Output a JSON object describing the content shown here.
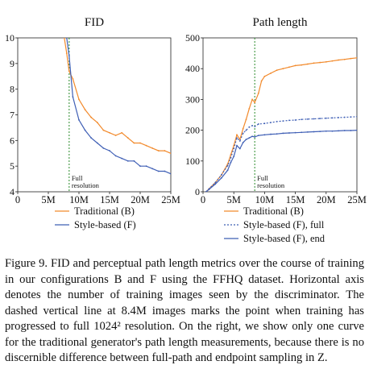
{
  "chart_data": [
    {
      "type": "line",
      "title": "FID",
      "xlim": [
        0,
        25
      ],
      "ylim": [
        4,
        10
      ],
      "x_ticks": [
        "0",
        "5M",
        "10M",
        "15M",
        "20M",
        "25M"
      ],
      "y_ticks": [
        "4",
        "5",
        "6",
        "7",
        "8",
        "9",
        "10"
      ],
      "vline": {
        "x": 8.4,
        "label": [
          "Full",
          "resolution"
        ]
      },
      "series": [
        {
          "name": "Traditional (B)",
          "color": "#f28a2c",
          "style": "solid",
          "x": [
            7.6,
            8.0,
            8.4,
            9.0,
            10.0,
            11.0,
            12.0,
            13.0,
            14.0,
            15.0,
            16.0,
            17.0,
            18.0,
            19.0,
            20.0,
            21.0,
            22.0,
            23.0,
            24.0,
            25.0
          ],
          "y": [
            10.0,
            9.4,
            8.7,
            8.4,
            7.6,
            7.2,
            6.9,
            6.7,
            6.4,
            6.3,
            6.2,
            6.3,
            6.1,
            5.9,
            5.9,
            5.8,
            5.7,
            5.6,
            5.6,
            5.5
          ]
        },
        {
          "name": "Style-based (F)",
          "color": "#3f5fb5",
          "style": "solid",
          "x": [
            8.0,
            8.4,
            9.0,
            10.0,
            11.0,
            12.0,
            13.0,
            14.0,
            15.0,
            16.0,
            17.0,
            18.0,
            19.0,
            20.0,
            21.0,
            22.0,
            23.0,
            24.0,
            25.0
          ],
          "y": [
            10.0,
            9.3,
            7.7,
            6.8,
            6.4,
            6.1,
            5.9,
            5.7,
            5.6,
            5.4,
            5.3,
            5.2,
            5.2,
            5.0,
            5.0,
            4.9,
            4.8,
            4.8,
            4.7
          ]
        }
      ]
    },
    {
      "type": "line",
      "title": "Path length",
      "xlim": [
        0,
        25
      ],
      "ylim": [
        0,
        500
      ],
      "x_ticks": [
        "0",
        "5M",
        "10M",
        "15M",
        "20M",
        "25M"
      ],
      "y_ticks": [
        "0",
        "100",
        "200",
        "300",
        "400",
        "500"
      ],
      "vline": {
        "x": 8.4,
        "label": [
          "Full",
          "resolution"
        ]
      },
      "series": [
        {
          "name": "Traditional (B)",
          "color": "#f28a2c",
          "style": "solid",
          "x": [
            0.5,
            1.0,
            2.0,
            3.0,
            4.0,
            4.5,
            5.0,
            5.5,
            6.0,
            6.5,
            7.0,
            7.5,
            8.0,
            8.4,
            9.0,
            9.5,
            10.0,
            11.0,
            12.0,
            13.0,
            14.0,
            15.0,
            16.0,
            17.0,
            18.0,
            19.0,
            20.0,
            21.0,
            22.0,
            23.0,
            24.0,
            25.0
          ],
          "y": [
            0,
            10,
            30,
            55,
            90,
            120,
            150,
            185,
            170,
            205,
            235,
            270,
            300,
            290,
            320,
            360,
            375,
            385,
            395,
            400,
            405,
            410,
            412,
            415,
            418,
            420,
            422,
            425,
            428,
            430,
            433,
            435
          ]
        },
        {
          "name": "Style-based (F), full",
          "color": "#3f5fb5",
          "style": "dotted",
          "x": [
            0.5,
            1.0,
            2.0,
            3.0,
            4.0,
            4.5,
            5.0,
            5.5,
            6.0,
            6.5,
            7.0,
            7.5,
            8.0,
            8.4,
            9.0,
            10.0,
            11.0,
            12.0,
            13.0,
            14.0,
            15.0,
            16.0,
            17.0,
            18.0,
            19.0,
            20.0,
            21.0,
            22.0,
            23.0,
            24.0,
            25.0
          ],
          "y": [
            0,
            10,
            30,
            55,
            85,
            110,
            140,
            175,
            165,
            190,
            200,
            210,
            215,
            212,
            220,
            222,
            225,
            228,
            230,
            232,
            233,
            235,
            236,
            237,
            238,
            239,
            240,
            241,
            242,
            243,
            244
          ]
        },
        {
          "name": "Style-based (F), end",
          "color": "#3f5fb5",
          "style": "solid",
          "x": [
            0.5,
            1.0,
            2.0,
            3.0,
            4.0,
            4.5,
            5.0,
            5.5,
            6.0,
            6.5,
            7.0,
            7.5,
            8.0,
            8.4,
            9.0,
            10.0,
            11.0,
            12.0,
            13.0,
            14.0,
            15.0,
            16.0,
            17.0,
            18.0,
            19.0,
            20.0,
            21.0,
            22.0,
            23.0,
            24.0,
            25.0
          ],
          "y": [
            0,
            8,
            25,
            45,
            70,
            95,
            115,
            150,
            140,
            160,
            170,
            175,
            180,
            178,
            183,
            185,
            187,
            188,
            190,
            191,
            192,
            193,
            194,
            195,
            196,
            197,
            197,
            198,
            199,
            199,
            200
          ]
        }
      ]
    }
  ],
  "caption": {
    "label": "Figure 9.",
    "text": "FID and perceptual path length metrics over the course of training in our configurations B and F using the FFHQ dataset. Horizontal axis denotes the number of training images seen by the discriminator. The dashed vertical line at 8.4M images marks the point when training has progressed to full 1024² resolution. On the right, we show only one curve for the traditional generator's path length measurements, because there is no discernible difference between full-path and endpoint sampling in Z."
  }
}
